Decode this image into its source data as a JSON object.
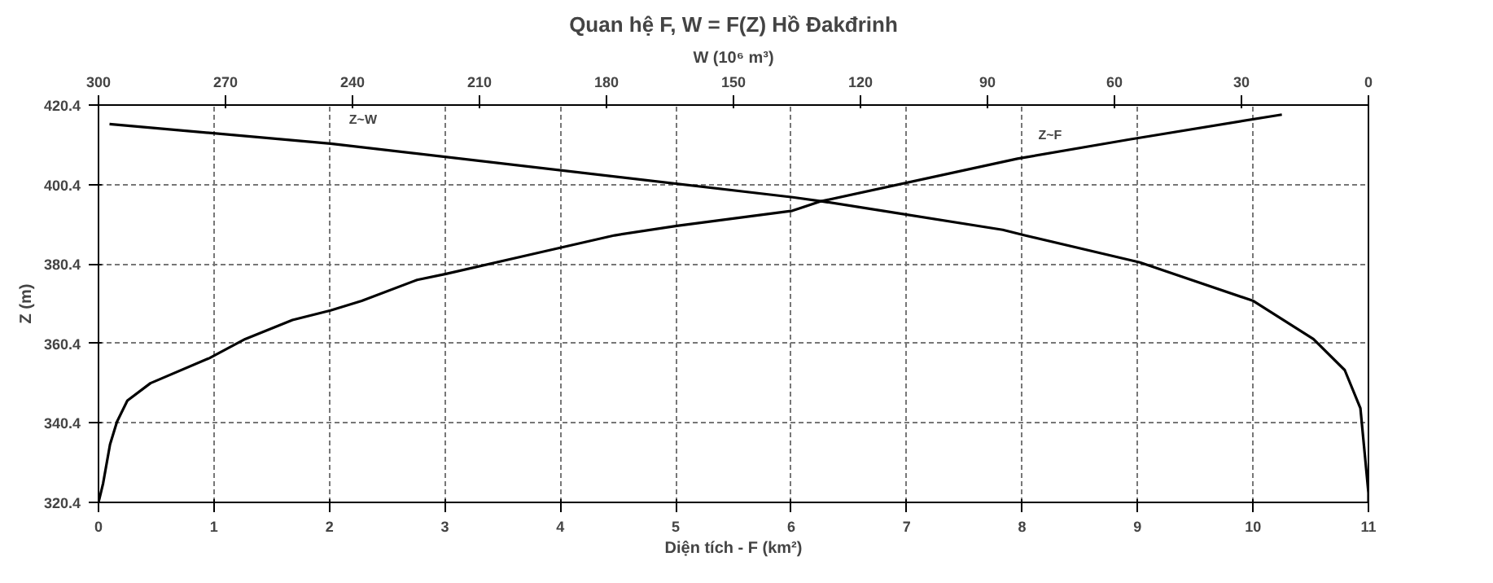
{
  "chart_data": {
    "type": "line",
    "title": "Quan hệ F, W = F(Z) Hồ Đakđrinh",
    "xlabel": "Diện tích - F (km²)",
    "ylabel": "Z (m)",
    "x2label": "W (10⁶ m³)",
    "xlim": [
      0,
      11
    ],
    "xticks": [
      0,
      1,
      2,
      3,
      4,
      5,
      6,
      7,
      8,
      9,
      10,
      11
    ],
    "x2lim": [
      300,
      0
    ],
    "x2ticks": [
      300,
      270,
      240,
      210,
      180,
      150,
      120,
      90,
      60,
      30,
      0
    ],
    "ylim": [
      320.4,
      420.4
    ],
    "yticks": [
      320.4,
      340.4,
      360.4,
      380.4,
      400.4,
      420.4
    ],
    "grid": true,
    "marker": "none",
    "line_style": "solid",
    "series": [
      {
        "name": "Z~F",
        "color": "#000000",
        "x": [
          0,
          0.04,
          0.1,
          0.16,
          0.25,
          0.45,
          0.96,
          1.27,
          1.68,
          2.01,
          2.28,
          2.76,
          3.01,
          3.73,
          4.47,
          5.01,
          6.01,
          6.26,
          7.96,
          8.92,
          10.25
        ],
        "values": [
          320.4,
          325.2,
          335.0,
          340.7,
          346.0,
          350.4,
          356.7,
          361.5,
          366.3,
          368.7,
          371.1,
          376.4,
          377.9,
          382.7,
          387.6,
          390.0,
          393.8,
          396.2,
          406.9,
          411.7,
          418.0
        ]
      },
      {
        "name": "Z~W",
        "color": "#000000",
        "axis": "x2",
        "x": [
          297.4,
          245.2,
          136,
          129.3,
          114.8,
          86.4,
          81.2,
          54.0,
          27.2,
          13.0,
          5.6,
          1.9,
          0,
          0
        ],
        "values": [
          415.6,
          410.7,
          397.2,
          396.2,
          393.8,
          389.0,
          387.6,
          380.8,
          371.1,
          361.5,
          353.7,
          344.1,
          322.8,
          320.4
        ]
      }
    ]
  }
}
